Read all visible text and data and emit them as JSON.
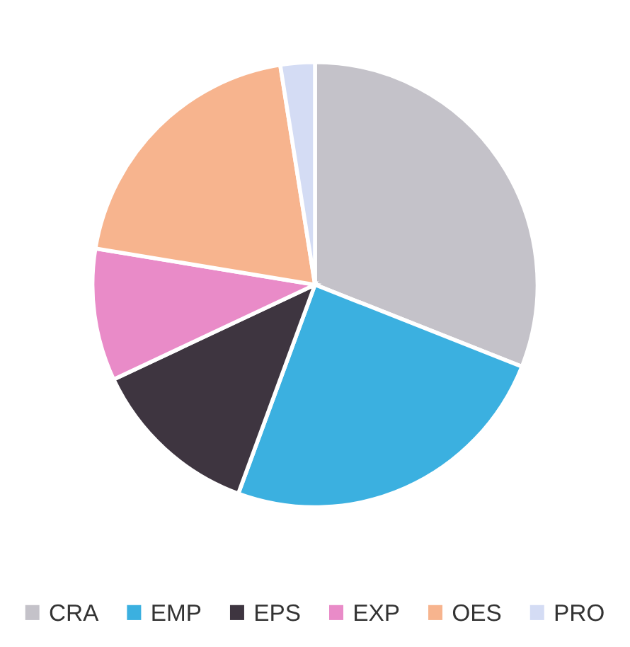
{
  "chart_data": {
    "type": "pie",
    "categories": [
      "CRA",
      "EMP",
      "EPS",
      "EXP",
      "OES",
      "PRO"
    ],
    "values": [
      31.0,
      24.6,
      12.4,
      9.6,
      19.9,
      2.5
    ],
    "colors": [
      "#c4c2c9",
      "#3bb0e0",
      "#3e3540",
      "#e98bc8",
      "#f7b48e",
      "#d4dcf4"
    ],
    "legend": "bottom"
  }
}
